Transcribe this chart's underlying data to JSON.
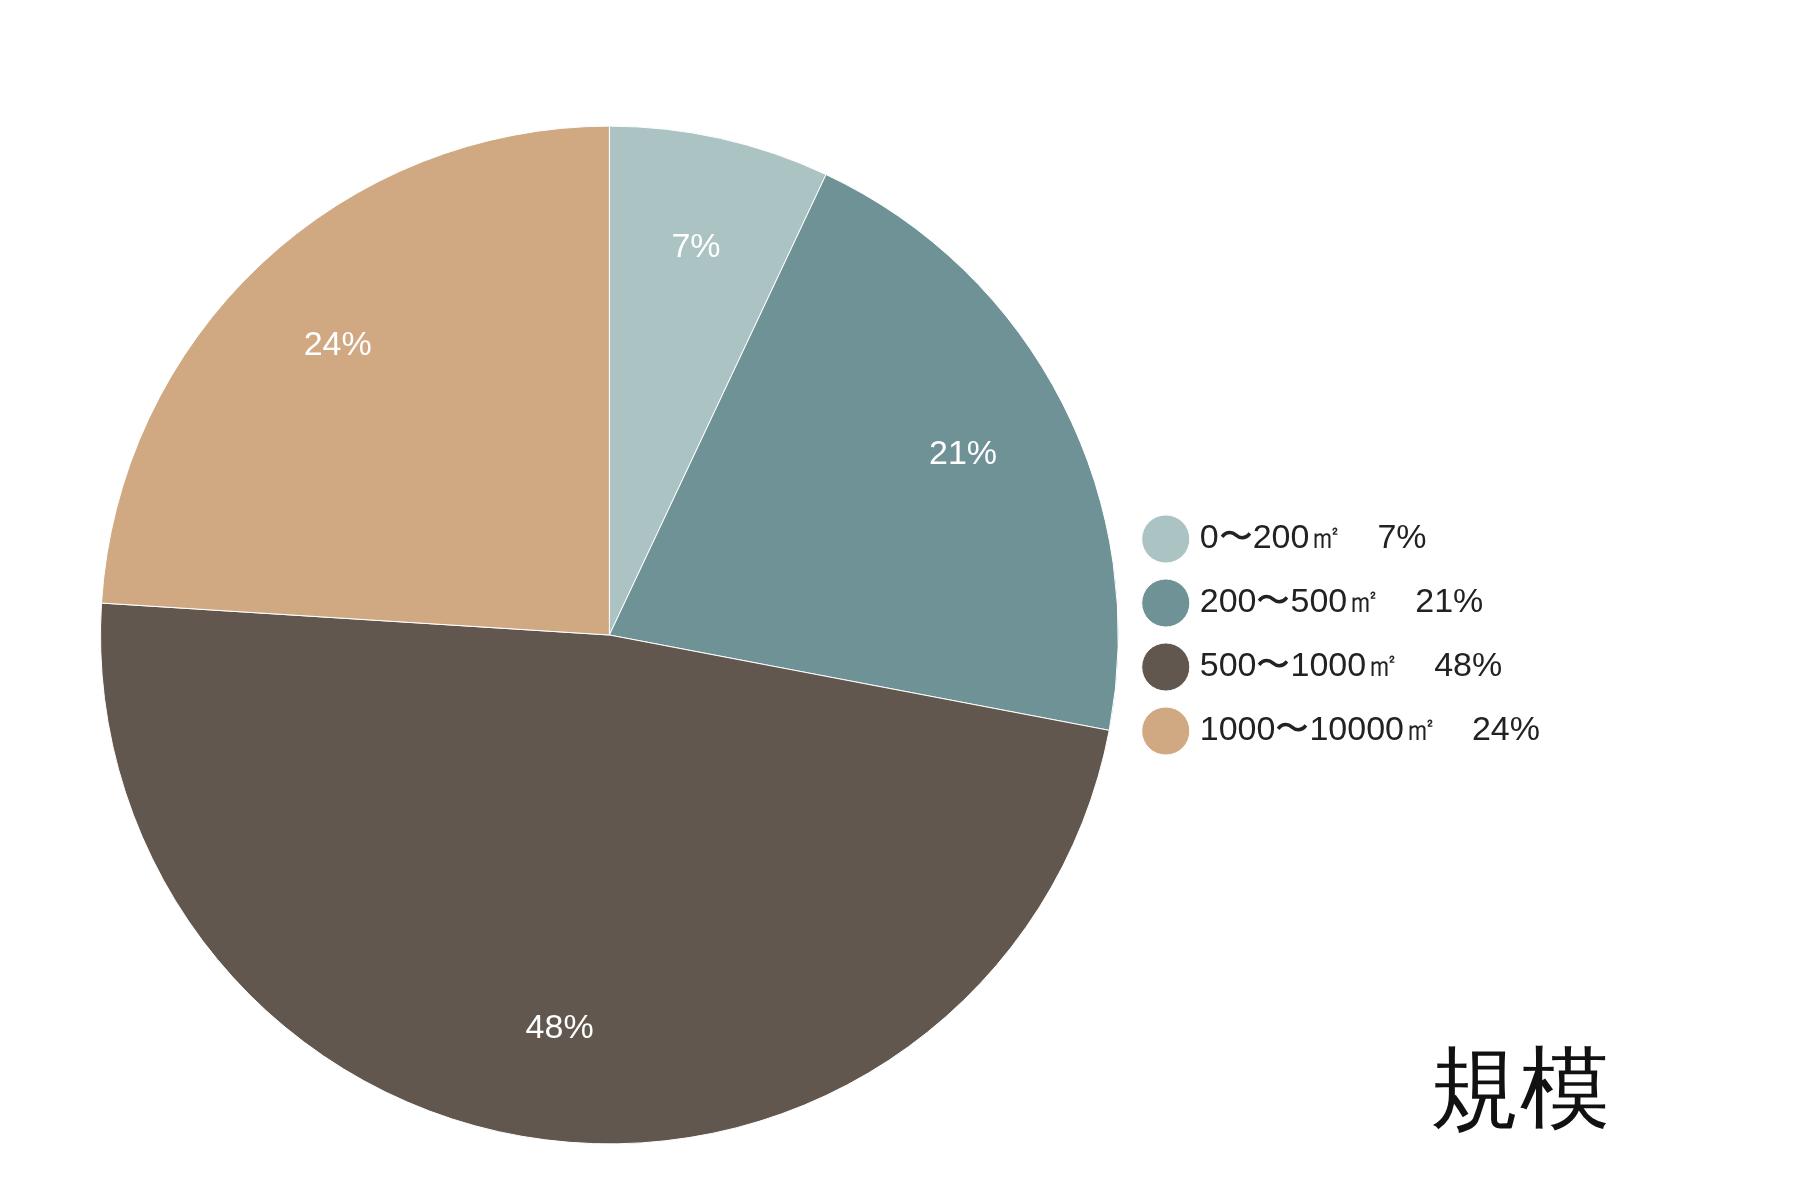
{
  "chart_data": {
    "type": "pie",
    "title": "規模",
    "categories": [
      "0〜200㎡　7%",
      "200〜500㎡　21%",
      "500〜1000㎡　48%",
      "1000〜10000㎡　24%"
    ],
    "values": [
      7,
      21,
      48,
      24
    ],
    "value_labels": [
      "7%",
      "21%",
      "48%",
      "24%"
    ],
    "colors": [
      "#abc3c3",
      "#6f9297",
      "#62574e",
      "#d0a882"
    ],
    "legend": "right"
  }
}
